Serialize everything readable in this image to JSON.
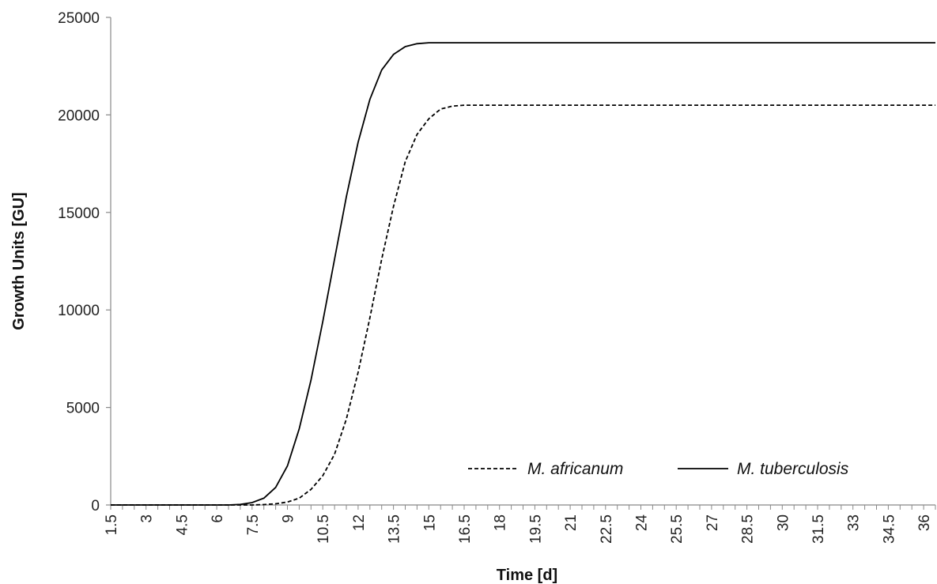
{
  "chart_data": {
    "type": "line",
    "title": "",
    "xlabel": "Time [d]",
    "ylabel": "Growth Units [GU]",
    "xlim": [
      1.5,
      36.5
    ],
    "ylim": [
      0,
      25000
    ],
    "y_ticks": [
      0,
      5000,
      10000,
      15000,
      20000,
      25000
    ],
    "x_ticks": [
      1.5,
      3,
      4.5,
      6,
      7.5,
      9,
      10.5,
      12,
      13.5,
      15,
      16.5,
      18,
      19.5,
      21,
      22.5,
      24,
      25.5,
      27,
      28.5,
      30,
      31.5,
      33,
      34.5,
      36
    ],
    "x_tick_labels": [
      "1.5",
      "3",
      "4.5",
      "6",
      "7.5",
      "9",
      "10.5",
      "12",
      "13.5",
      "15",
      "16.5",
      "18",
      "19.5",
      "21",
      "22.5",
      "24",
      "25.5",
      "27",
      "28.5",
      "30",
      "31.5",
      "33",
      "34.5",
      "36"
    ],
    "grid": false,
    "legend_position": "bottom-right",
    "series": [
      {
        "name": "M. africanum",
        "style": "dashed",
        "color": "#000000",
        "x": [
          1.5,
          7.5,
          8.0,
          8.5,
          9.0,
          9.5,
          10.0,
          10.5,
          11.0,
          11.5,
          12.0,
          12.5,
          13.0,
          13.5,
          14.0,
          14.5,
          15.0,
          15.5,
          16.0,
          16.5,
          17.5,
          36.5
        ],
        "y": [
          0,
          0,
          20,
          60,
          150,
          350,
          800,
          1500,
          2600,
          4400,
          6800,
          9600,
          12600,
          15300,
          17600,
          19000,
          19800,
          20300,
          20450,
          20500,
          20500,
          20500
        ]
      },
      {
        "name": "M. tuberculosis",
        "style": "solid",
        "color": "#000000",
        "x": [
          1.5,
          6.5,
          7.0,
          7.5,
          8.0,
          8.5,
          9.0,
          9.5,
          10.0,
          10.5,
          11.0,
          11.5,
          12.0,
          12.5,
          13.0,
          13.5,
          14.0,
          14.5,
          15.0,
          16.0,
          36.5
        ],
        "y": [
          0,
          0,
          30,
          120,
          350,
          900,
          2000,
          3900,
          6400,
          9400,
          12600,
          15800,
          18600,
          20800,
          22300,
          23100,
          23500,
          23650,
          23700,
          23700,
          23700
        ]
      }
    ]
  }
}
